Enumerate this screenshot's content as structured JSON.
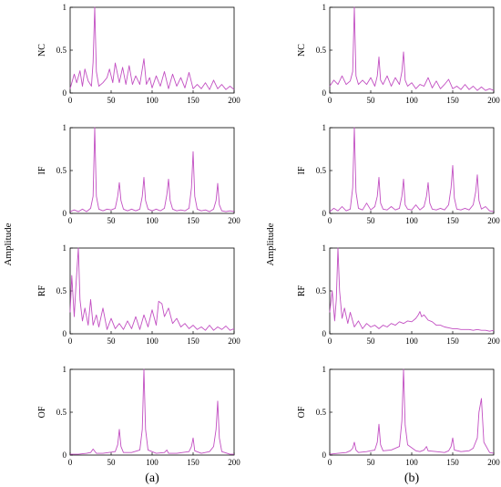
{
  "figure": {
    "ylabel": "Amplitude",
    "colors": {
      "line": "#c24fc2",
      "axis": "#000000"
    }
  },
  "chart_data": [
    {
      "type": "line",
      "panel": "a",
      "caption": "(a)",
      "subplots": [
        {
          "ylabel": "NC",
          "xlim": [
            0,
            200
          ],
          "ylim": [
            0,
            1
          ],
          "xticks": [
            0,
            50,
            100,
            150,
            200
          ],
          "yticks": [
            "0",
            "0.5",
            "1"
          ],
          "x": [
            0,
            5,
            8,
            12,
            15,
            18,
            22,
            26,
            28,
            30,
            32,
            35,
            40,
            45,
            48,
            52,
            55,
            60,
            64,
            68,
            72,
            76,
            80,
            85,
            88,
            90,
            93,
            97,
            100,
            105,
            110,
            115,
            120,
            125,
            130,
            135,
            140,
            145,
            150,
            155,
            160,
            165,
            170,
            175,
            180,
            185,
            190,
            195,
            200
          ],
          "values": [
            0.05,
            0.22,
            0.12,
            0.26,
            0.08,
            0.28,
            0.14,
            0.08,
            0.36,
            1.0,
            0.25,
            0.08,
            0.12,
            0.18,
            0.28,
            0.12,
            0.35,
            0.12,
            0.3,
            0.1,
            0.32,
            0.1,
            0.2,
            0.1,
            0.28,
            0.4,
            0.1,
            0.18,
            0.06,
            0.2,
            0.08,
            0.25,
            0.05,
            0.22,
            0.08,
            0.18,
            0.06,
            0.24,
            0.05,
            0.1,
            0.05,
            0.12,
            0.04,
            0.15,
            0.05,
            0.1,
            0.04,
            0.08,
            0.04
          ]
        },
        {
          "ylabel": "IF",
          "xlim": [
            0,
            200
          ],
          "ylim": [
            0,
            1
          ],
          "xticks": [
            0,
            50,
            100,
            150,
            200
          ],
          "yticks": [
            "0",
            "0.5",
            "1"
          ],
          "x": [
            0,
            5,
            10,
            15,
            20,
            25,
            28,
            30,
            32,
            35,
            40,
            45,
            50,
            55,
            58,
            60,
            62,
            65,
            70,
            75,
            80,
            85,
            88,
            90,
            92,
            95,
            100,
            105,
            110,
            115,
            118,
            120,
            122,
            125,
            130,
            135,
            140,
            145,
            148,
            150,
            152,
            155,
            160,
            165,
            170,
            175,
            178,
            180,
            182,
            185,
            190,
            195,
            200
          ],
          "values": [
            0.02,
            0.04,
            0.02,
            0.05,
            0.02,
            0.06,
            0.2,
            1.0,
            0.2,
            0.05,
            0.03,
            0.05,
            0.04,
            0.06,
            0.2,
            0.36,
            0.15,
            0.05,
            0.03,
            0.05,
            0.03,
            0.05,
            0.2,
            0.42,
            0.15,
            0.05,
            0.03,
            0.05,
            0.03,
            0.06,
            0.22,
            0.4,
            0.15,
            0.05,
            0.03,
            0.04,
            0.03,
            0.06,
            0.3,
            0.72,
            0.2,
            0.05,
            0.03,
            0.04,
            0.02,
            0.05,
            0.15,
            0.35,
            0.1,
            0.03,
            0.02,
            0.03,
            0.02
          ]
        },
        {
          "ylabel": "RF",
          "xlim": [
            0,
            200
          ],
          "ylim": [
            0,
            1
          ],
          "xticks": [
            0,
            50,
            100,
            150,
            200
          ],
          "yticks": [
            "0",
            "0.5",
            "1"
          ],
          "x": [
            0,
            2,
            5,
            7,
            10,
            12,
            15,
            18,
            22,
            25,
            28,
            32,
            35,
            40,
            45,
            50,
            55,
            60,
            65,
            70,
            75,
            80,
            85,
            90,
            95,
            100,
            105,
            108,
            112,
            115,
            120,
            125,
            130,
            135,
            140,
            145,
            150,
            155,
            160,
            165,
            170,
            175,
            180,
            185,
            190,
            195,
            200
          ],
          "values": [
            0.25,
            0.68,
            0.2,
            0.55,
            1.0,
            0.4,
            0.15,
            0.3,
            0.1,
            0.4,
            0.1,
            0.22,
            0.08,
            0.3,
            0.05,
            0.18,
            0.06,
            0.12,
            0.05,
            0.15,
            0.06,
            0.2,
            0.05,
            0.22,
            0.08,
            0.28,
            0.1,
            0.38,
            0.35,
            0.2,
            0.3,
            0.12,
            0.18,
            0.08,
            0.12,
            0.06,
            0.1,
            0.05,
            0.08,
            0.04,
            0.1,
            0.04,
            0.08,
            0.05,
            0.09,
            0.04,
            0.06
          ]
        },
        {
          "ylabel": "OF",
          "xlim": [
            0,
            200
          ],
          "ylim": [
            0,
            1
          ],
          "xticks": [
            0,
            50,
            100,
            150,
            200
          ],
          "yticks": [
            "0",
            "0.5",
            "1"
          ],
          "x": [
            0,
            10,
            20,
            25,
            28,
            32,
            40,
            55,
            58,
            60,
            62,
            65,
            75,
            85,
            88,
            90,
            92,
            95,
            105,
            115,
            118,
            120,
            130,
            145,
            148,
            150,
            152,
            160,
            170,
            175,
            178,
            180,
            182,
            185,
            195,
            200
          ],
          "values": [
            0.01,
            0.01,
            0.02,
            0.03,
            0.07,
            0.02,
            0.02,
            0.04,
            0.12,
            0.3,
            0.1,
            0.03,
            0.03,
            0.06,
            0.3,
            1.0,
            0.3,
            0.06,
            0.02,
            0.03,
            0.06,
            0.02,
            0.02,
            0.04,
            0.1,
            0.2,
            0.05,
            0.02,
            0.04,
            0.1,
            0.3,
            0.63,
            0.2,
            0.04,
            0.01,
            0.01
          ]
        }
      ]
    },
    {
      "type": "line",
      "panel": "b",
      "caption": "(b)",
      "subplots": [
        {
          "ylabel": "NC",
          "xlim": [
            0,
            200
          ],
          "ylim": [
            0,
            1
          ],
          "xticks": [
            0,
            50,
            100,
            150,
            200
          ],
          "yticks": [
            "0",
            "0.5",
            "1"
          ],
          "x": [
            0,
            5,
            10,
            15,
            20,
            25,
            28,
            30,
            32,
            35,
            40,
            45,
            50,
            55,
            58,
            60,
            62,
            65,
            70,
            75,
            80,
            85,
            88,
            90,
            92,
            95,
            100,
            105,
            110,
            115,
            120,
            125,
            130,
            135,
            140,
            145,
            150,
            155,
            160,
            165,
            170,
            175,
            180,
            185,
            190,
            195,
            200
          ],
          "values": [
            0.08,
            0.15,
            0.1,
            0.2,
            0.1,
            0.14,
            0.25,
            1.0,
            0.2,
            0.1,
            0.15,
            0.1,
            0.18,
            0.08,
            0.2,
            0.42,
            0.15,
            0.1,
            0.2,
            0.08,
            0.18,
            0.1,
            0.25,
            0.48,
            0.15,
            0.08,
            0.12,
            0.05,
            0.1,
            0.08,
            0.18,
            0.06,
            0.14,
            0.05,
            0.1,
            0.16,
            0.05,
            0.08,
            0.04,
            0.1,
            0.04,
            0.08,
            0.03,
            0.07,
            0.03,
            0.05,
            0.03
          ]
        },
        {
          "ylabel": "IF",
          "xlim": [
            0,
            200
          ],
          "ylim": [
            0,
            1
          ],
          "xticks": [
            0,
            50,
            100,
            150,
            200
          ],
          "yticks": [
            "0",
            "0.5",
            "1"
          ],
          "x": [
            0,
            5,
            10,
            15,
            20,
            25,
            28,
            30,
            32,
            35,
            40,
            45,
            50,
            55,
            58,
            60,
            62,
            65,
            70,
            75,
            80,
            85,
            88,
            90,
            92,
            95,
            100,
            105,
            110,
            115,
            118,
            120,
            122,
            125,
            130,
            135,
            140,
            145,
            148,
            150,
            152,
            155,
            160,
            165,
            170,
            175,
            178,
            180,
            182,
            185,
            190,
            195,
            200
          ],
          "values": [
            0.02,
            0.06,
            0.03,
            0.08,
            0.03,
            0.05,
            0.3,
            1.0,
            0.25,
            0.06,
            0.04,
            0.12,
            0.04,
            0.08,
            0.2,
            0.42,
            0.12,
            0.05,
            0.04,
            0.08,
            0.04,
            0.06,
            0.2,
            0.4,
            0.1,
            0.05,
            0.04,
            0.1,
            0.04,
            0.08,
            0.2,
            0.36,
            0.12,
            0.05,
            0.04,
            0.06,
            0.04,
            0.1,
            0.3,
            0.56,
            0.18,
            0.05,
            0.04,
            0.06,
            0.04,
            0.1,
            0.25,
            0.45,
            0.15,
            0.05,
            0.08,
            0.03,
            0.02
          ]
        },
        {
          "ylabel": "RF",
          "xlim": [
            0,
            200
          ],
          "ylim": [
            0,
            1
          ],
          "xticks": [
            0,
            50,
            100,
            150,
            200
          ],
          "yticks": [
            "0",
            "0.5",
            "1"
          ],
          "x": [
            0,
            3,
            6,
            8,
            10,
            12,
            15,
            18,
            22,
            25,
            30,
            35,
            40,
            45,
            50,
            55,
            60,
            65,
            70,
            75,
            80,
            85,
            90,
            95,
            100,
            105,
            108,
            110,
            112,
            115,
            120,
            125,
            130,
            135,
            140,
            145,
            150,
            155,
            160,
            165,
            170,
            175,
            180,
            185,
            190,
            195,
            200
          ],
          "values": [
            0.25,
            0.5,
            0.15,
            0.4,
            1.0,
            0.5,
            0.18,
            0.3,
            0.12,
            0.25,
            0.08,
            0.15,
            0.06,
            0.12,
            0.08,
            0.1,
            0.06,
            0.1,
            0.08,
            0.12,
            0.1,
            0.14,
            0.12,
            0.15,
            0.14,
            0.18,
            0.22,
            0.26,
            0.2,
            0.22,
            0.16,
            0.14,
            0.1,
            0.1,
            0.08,
            0.07,
            0.06,
            0.06,
            0.05,
            0.05,
            0.05,
            0.04,
            0.05,
            0.04,
            0.04,
            0.03,
            0.04
          ]
        },
        {
          "ylabel": "OF",
          "xlim": [
            0,
            200
          ],
          "ylim": [
            0,
            1
          ],
          "xticks": [
            0,
            50,
            100,
            150,
            200
          ],
          "yticks": [
            "0",
            "0.5",
            "1"
          ],
          "x": [
            0,
            10,
            20,
            25,
            28,
            30,
            32,
            35,
            45,
            55,
            58,
            60,
            62,
            65,
            75,
            85,
            88,
            90,
            92,
            95,
            105,
            110,
            115,
            118,
            120,
            130,
            140,
            145,
            148,
            150,
            152,
            160,
            170,
            175,
            180,
            182,
            185,
            188,
            195,
            200
          ],
          "values": [
            0.01,
            0.02,
            0.03,
            0.05,
            0.08,
            0.15,
            0.06,
            0.03,
            0.04,
            0.06,
            0.15,
            0.36,
            0.12,
            0.05,
            0.06,
            0.1,
            0.4,
            1.0,
            0.35,
            0.12,
            0.05,
            0.04,
            0.06,
            0.1,
            0.05,
            0.04,
            0.03,
            0.05,
            0.1,
            0.2,
            0.06,
            0.04,
            0.05,
            0.08,
            0.2,
            0.5,
            0.66,
            0.15,
            0.03,
            0.02
          ]
        }
      ]
    }
  ]
}
